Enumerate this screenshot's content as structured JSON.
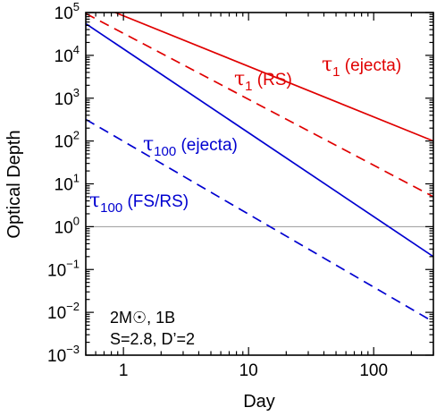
{
  "chart_data": {
    "type": "line",
    "xlabel": "Day",
    "ylabel": "Optical Depth",
    "xscale": "log",
    "yscale": "log",
    "xlim": [
      0.5,
      300
    ],
    "ylim": [
      0.001,
      100000
    ],
    "x_ticks": [
      {
        "value": 1,
        "label": "1"
      },
      {
        "value": 10,
        "label": "10"
      },
      {
        "value": 100,
        "label": "100"
      }
    ],
    "y_ticks": [
      {
        "value": 0.001,
        "mant": "10",
        "exp": "−3"
      },
      {
        "value": 0.01,
        "mant": "10",
        "exp": "−2"
      },
      {
        "value": 0.1,
        "mant": "10",
        "exp": "−1"
      },
      {
        "value": 1,
        "mant": "10",
        "exp": "0"
      },
      {
        "value": 10,
        "mant": "10",
        "exp": "1"
      },
      {
        "value": 100,
        "mant": "10",
        "exp": "2"
      },
      {
        "value": 1000,
        "mant": "10",
        "exp": "3"
      },
      {
        "value": 10000,
        "mant": "10",
        "exp": "4"
      },
      {
        "value": 100000,
        "mant": "10",
        "exp": "5"
      }
    ],
    "reference_line": {
      "y": 1,
      "color": "#9a9a9a"
    },
    "series": [
      {
        "label_main": "τ",
        "label_sub": "1",
        "label_rest": " (ejecta)",
        "color": "#e00000",
        "dash": false,
        "x": [
          0.86,
          300
        ],
        "y": [
          100000,
          100
        ]
      },
      {
        "label_main": "τ",
        "label_sub": "1",
        "label_rest": " (RS)",
        "color": "#e00000",
        "dash": true,
        "x": [
          0.5,
          300
        ],
        "y": [
          95000,
          5
        ]
      },
      {
        "label_main": "τ",
        "label_sub": "100",
        "label_rest": " (ejecta)",
        "color": "#0000d0",
        "dash": false,
        "x": [
          0.5,
          300
        ],
        "y": [
          55000,
          0.2
        ]
      },
      {
        "label_main": "τ",
        "label_sub": "100",
        "label_rest": " (FS/RS)",
        "color": "#0000d0",
        "dash": true,
        "x": [
          0.5,
          300
        ],
        "y": [
          320,
          0.006
        ]
      }
    ],
    "annotation_lines": [
      "2M☉, 1B",
      "S=2.8, D’=2"
    ]
  }
}
